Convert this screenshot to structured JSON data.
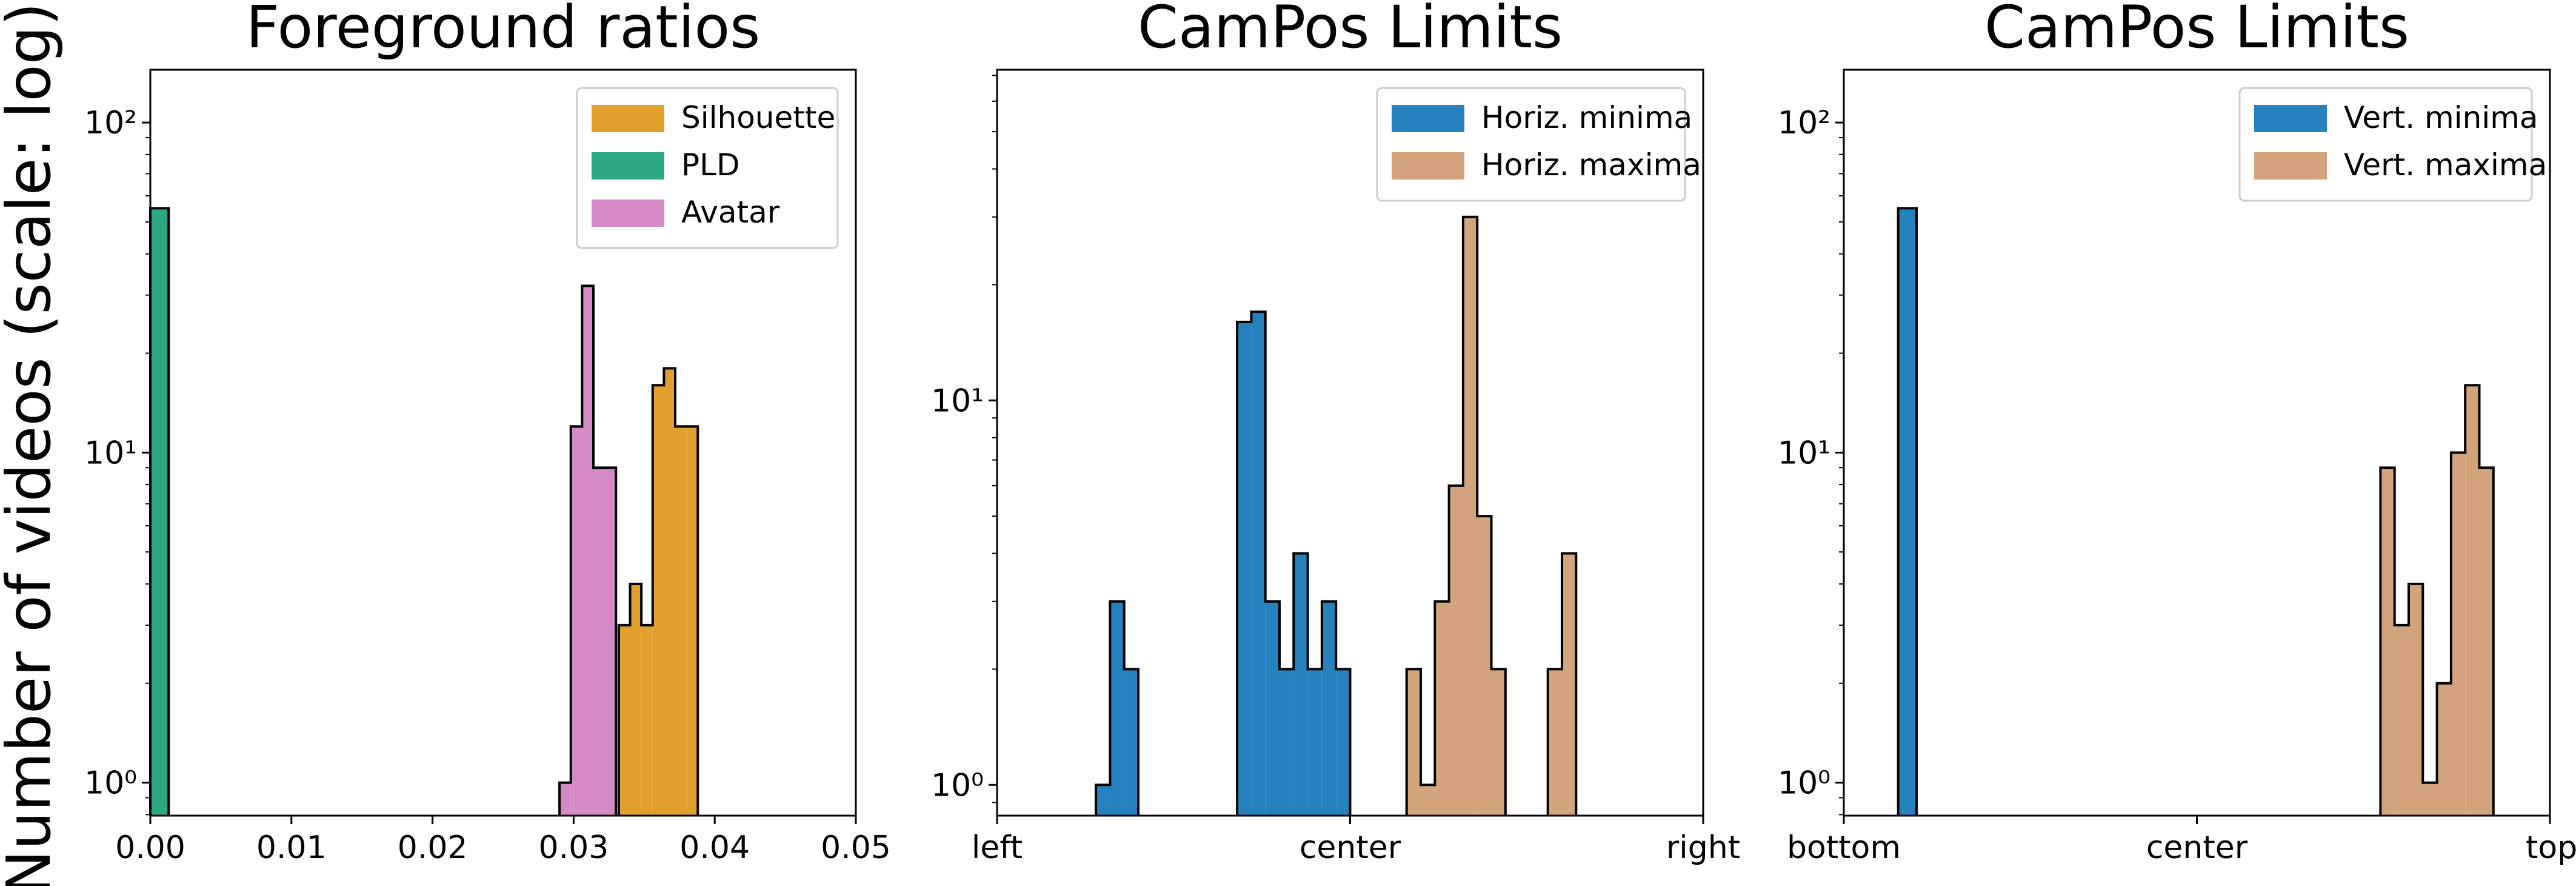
{
  "figure": {
    "ylabel": "Number of videos (scale: log)"
  },
  "chart_data": [
    {
      "type": "histogram",
      "title": "Foreground ratios",
      "xlabel": "",
      "ylabel": "Number of videos (scale: log)",
      "y_scale": "log",
      "xlim": [
        0.0,
        0.05
      ],
      "ylim_log10": [
        -0.1,
        2.16
      ],
      "x_ticks": [
        0.0,
        0.01,
        0.02,
        0.03,
        0.04,
        0.05
      ],
      "x_tick_labels": [
        "0.00",
        "0.01",
        "0.02",
        "0.03",
        "0.04",
        "0.05"
      ],
      "y_ticks": [
        1,
        10,
        100
      ],
      "y_tick_labels": [
        "10⁰",
        "10¹",
        "10²"
      ],
      "grid": false,
      "legend_position": "top-right",
      "series": [
        {
          "name": "Silhouette",
          "color": "#e1a02c",
          "bin_width": 0.0008,
          "bins": [
            {
              "x0": 0.0332,
              "count": 3
            },
            {
              "x0": 0.034,
              "count": 4
            },
            {
              "x0": 0.0348,
              "count": 3
            },
            {
              "x0": 0.0356,
              "count": 16
            },
            {
              "x0": 0.0364,
              "count": 18
            },
            {
              "x0": 0.0372,
              "count": 12
            },
            {
              "x0": 0.038,
              "count": 12
            }
          ]
        },
        {
          "name": "PLD",
          "color": "#2ba783",
          "bin_width": 0.0013,
          "bins": [
            {
              "x0": 0.0,
              "count": 55
            }
          ]
        },
        {
          "name": "Avatar",
          "color": "#d48ac7",
          "bin_width": 0.0008,
          "bins": [
            {
              "x0": 0.029,
              "count": 1
            },
            {
              "x0": 0.0298,
              "count": 12
            },
            {
              "x0": 0.0306,
              "count": 32
            },
            {
              "x0": 0.0314,
              "count": 9
            },
            {
              "x0": 0.0322,
              "count": 9
            }
          ]
        }
      ]
    },
    {
      "type": "histogram",
      "title": "CamPos Limits",
      "xlabel": "",
      "y_scale": "log",
      "xlim": [
        0,
        1
      ],
      "ylim_log10": [
        -0.08,
        1.86
      ],
      "x_ticks": [
        0,
        0.5,
        1
      ],
      "x_tick_labels": [
        "left",
        "center",
        "right"
      ],
      "y_ticks": [
        1,
        10
      ],
      "y_tick_labels": [
        "10⁰",
        "10¹"
      ],
      "grid": false,
      "legend_position": "top-right",
      "series": [
        {
          "name": "Horiz. minima",
          "color": "#2582be",
          "bin_width": 0.02,
          "bins": [
            {
              "x0": 0.14,
              "count": 1
            },
            {
              "x0": 0.16,
              "count": 3
            },
            {
              "x0": 0.18,
              "count": 2
            },
            {
              "x0": 0.34,
              "count": 16
            },
            {
              "x0": 0.36,
              "count": 17
            },
            {
              "x0": 0.38,
              "count": 3
            },
            {
              "x0": 0.4,
              "count": 2
            },
            {
              "x0": 0.42,
              "count": 4
            },
            {
              "x0": 0.44,
              "count": 2
            },
            {
              "x0": 0.46,
              "count": 3
            },
            {
              "x0": 0.48,
              "count": 2
            }
          ]
        },
        {
          "name": "Horiz. maxima",
          "color": "#d3a47c",
          "bin_width": 0.02,
          "bins": [
            {
              "x0": 0.58,
              "count": 2
            },
            {
              "x0": 0.6,
              "count": 1
            },
            {
              "x0": 0.62,
              "count": 3
            },
            {
              "x0": 0.64,
              "count": 6
            },
            {
              "x0": 0.66,
              "count": 30
            },
            {
              "x0": 0.68,
              "count": 5
            },
            {
              "x0": 0.7,
              "count": 2
            },
            {
              "x0": 0.78,
              "count": 2
            },
            {
              "x0": 0.8,
              "count": 4
            }
          ]
        }
      ]
    },
    {
      "type": "histogram",
      "title": "CamPos Limits",
      "xlabel": "",
      "y_scale": "log",
      "xlim": [
        0,
        1
      ],
      "ylim_log10": [
        -0.1,
        2.16
      ],
      "x_ticks": [
        0,
        0.5,
        1
      ],
      "x_tick_labels": [
        "bottom",
        "center",
        "top"
      ],
      "y_ticks": [
        1,
        10,
        100
      ],
      "y_tick_labels": [
        "10⁰",
        "10¹",
        "10²"
      ],
      "grid": false,
      "legend_position": "top-right",
      "series": [
        {
          "name": "Vert. minima",
          "color": "#2582be",
          "bin_width": 0.026,
          "bins": [
            {
              "x0": 0.077,
              "count": 55
            }
          ]
        },
        {
          "name": "Vert. maxima",
          "color": "#d3a47c",
          "bin_width": 0.02,
          "bins": [
            {
              "x0": 0.76,
              "count": 9
            },
            {
              "x0": 0.78,
              "count": 3
            },
            {
              "x0": 0.8,
              "count": 4
            },
            {
              "x0": 0.82,
              "count": 1
            },
            {
              "x0": 0.84,
              "count": 2
            },
            {
              "x0": 0.86,
              "count": 10
            },
            {
              "x0": 0.88,
              "count": 16
            },
            {
              "x0": 0.9,
              "count": 9
            }
          ]
        }
      ]
    }
  ]
}
